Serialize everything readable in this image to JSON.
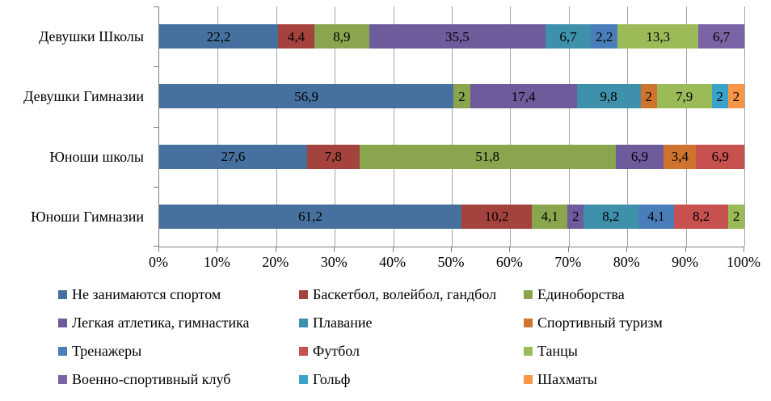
{
  "chart_data": {
    "type": "bar",
    "orientation": "horizontal",
    "stacked": true,
    "percent_scale": true,
    "title": "",
    "xlabel": "",
    "ylabel": "",
    "xlim": [
      0,
      100
    ],
    "x_ticks": [
      "0%",
      "10%",
      "20%",
      "30%",
      "40%",
      "50%",
      "60%",
      "70%",
      "80%",
      "90%",
      "100%"
    ],
    "grid": true,
    "legend_position": "bottom",
    "legend_columns": 3,
    "categories": [
      "Девушки Школы",
      "Девушки Гимназии",
      "Юноши школы",
      "Юноши Гимназии"
    ],
    "series_palette": [
      {
        "name": "Не занимаются спортом",
        "color": "#46719F"
      },
      {
        "name": "Баскетбол, волейбол, гандбол",
        "color": "#A4433E"
      },
      {
        "name": "Единоборства",
        "color": "#89A54E"
      },
      {
        "name": "Легкая атлетика, гимнастика",
        "color": "#6D5B9C"
      },
      {
        "name": "Плавание",
        "color": "#3F90AA"
      },
      {
        "name": "Спортивный туризм",
        "color": "#CE742F"
      },
      {
        "name": "Тренажеры",
        "color": "#4A7EBB"
      },
      {
        "name": "Футбол",
        "color": "#C6514E"
      },
      {
        "name": "Танцы",
        "color": "#9BBB59"
      },
      {
        "name": "Военно-спортивный клуб",
        "color": "#7A64A5"
      },
      {
        "name": "Гольф",
        "color": "#39A3CA"
      },
      {
        "name": "Шахматы",
        "color": "#F79646"
      }
    ],
    "bars": [
      {
        "category": "Девушки Школы",
        "segments": [
          {
            "series": "Не занимаются спортом",
            "value": 22.2,
            "label": "22,2"
          },
          {
            "series": "Баскетбол, волейбол, гандбол",
            "value": 4.4,
            "label": "4,4"
          },
          {
            "series": "Единоборства",
            "value": 8.9,
            "label": "8,9"
          },
          {
            "series": "Легкая атлетика, гимнастика",
            "value": 35.5,
            "label": "35,5"
          },
          {
            "series": "Плавание",
            "value": 6.7,
            "label": "6,7"
          },
          {
            "series": "Тренажеры",
            "value": 2.2,
            "label": "2,2"
          },
          {
            "series": "Танцы",
            "value": 13.3,
            "label": "13,3"
          },
          {
            "series": "Военно-спортивный клуб",
            "value": 6.7,
            "label": "6,7"
          }
        ]
      },
      {
        "category": "Девушки Гимназии",
        "segments": [
          {
            "series": "Не занимаются спортом",
            "value": 56.9,
            "label": "56,9"
          },
          {
            "series": "Единоборства",
            "value": 2,
            "label": "2"
          },
          {
            "series": "Легкая атлетика, гимнастика",
            "value": 17.4,
            "label": "17,4"
          },
          {
            "series": "Плавание",
            "value": 9.8,
            "label": "9,8"
          },
          {
            "series": "Спортивный туризм",
            "value": 2,
            "label": "2"
          },
          {
            "series": "Танцы",
            "value": 7.9,
            "label": "7,9"
          },
          {
            "series": "Гольф",
            "value": 2,
            "label": "2"
          },
          {
            "series": "Шахматы",
            "value": 2,
            "label": "2"
          }
        ]
      },
      {
        "category": "Юноши школы",
        "segments": [
          {
            "series": "Не занимаются спортом",
            "value": 27.6,
            "label": "27,6"
          },
          {
            "series": "Баскетбол, волейбол, гандбол",
            "value": 7.8,
            "label": "7,8"
          },
          {
            "series": "Единоборства",
            "value": 51.8,
            "label": "51,8"
          },
          {
            "series": "Легкая атлетика, гимнастика",
            "value": 6.9,
            "label": "6,9"
          },
          {
            "series": "Спортивный туризм",
            "value": 3.4,
            "label": "3,4"
          },
          {
            "series": "Футбол",
            "value": 6.9,
            "label": "6,9"
          }
        ]
      },
      {
        "category": "Юноши Гимназии",
        "segments": [
          {
            "series": "Не занимаются спортом",
            "value": 61.2,
            "label": "61,2"
          },
          {
            "series": "Баскетбол, волейбол, гандбол",
            "value": 10.2,
            "label": "10,2"
          },
          {
            "series": "Единоборства",
            "value": 4.1,
            "label": "4,1"
          },
          {
            "series": "Легкая атлетика, гимнастика",
            "value": 2,
            "label": "2"
          },
          {
            "series": "Плавание",
            "value": 8.2,
            "label": "8,2"
          },
          {
            "series": "Тренажеры",
            "value": 4.1,
            "label": "4,1"
          },
          {
            "series": "Футбол",
            "value": 8.2,
            "label": "8,2"
          },
          {
            "series": "Танцы",
            "value": 2,
            "label": "2"
          }
        ]
      }
    ],
    "colors": {
      "axis_line": "#7f7f7f",
      "gridline": "#a6a6a6",
      "background": "#ffffff",
      "data_label": "#000000"
    }
  }
}
